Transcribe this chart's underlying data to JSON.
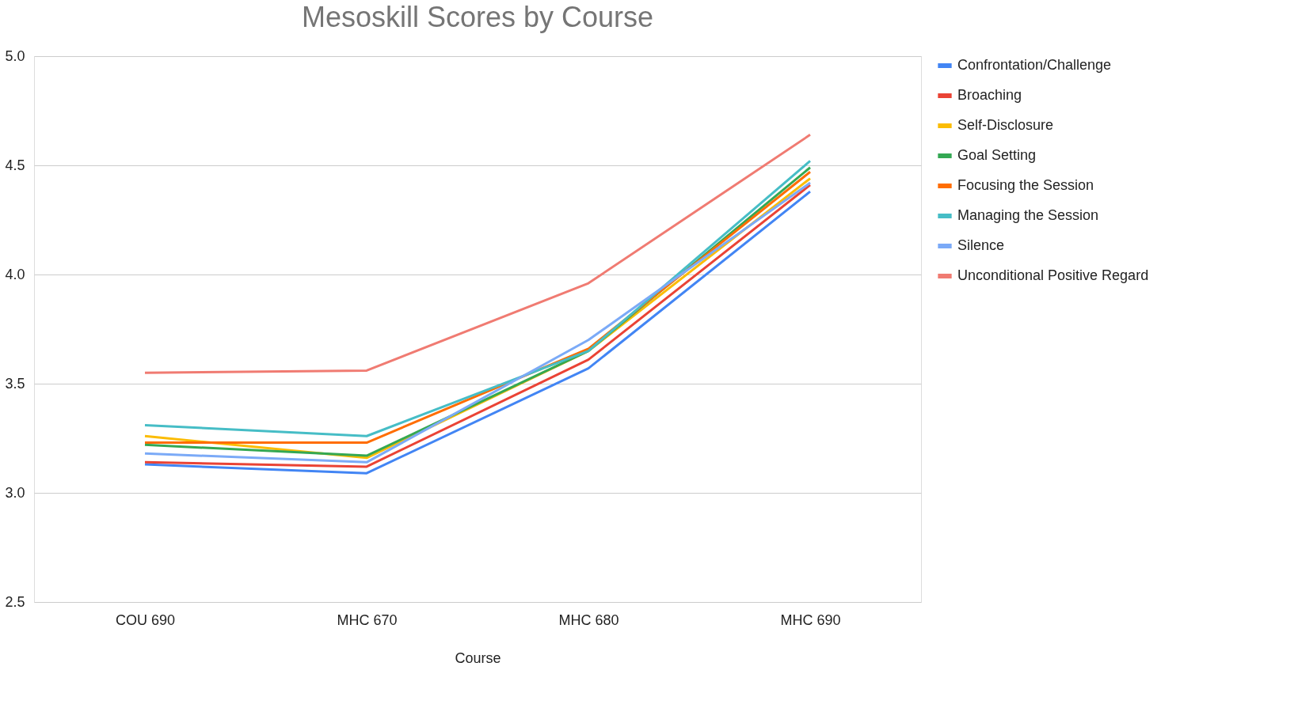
{
  "chart_data": {
    "type": "line",
    "title": "Mesoskill Scores by Course",
    "xlabel": "Course",
    "categories": [
      "COU 690",
      "MHC 670",
      "MHC 680",
      "MHC 690"
    ],
    "series": [
      {
        "name": "Confrontation/Challenge",
        "color": "#4285f4",
        "values": [
          3.13,
          3.09,
          3.57,
          4.38
        ]
      },
      {
        "name": "Broaching",
        "color": "#ea4335",
        "values": [
          3.14,
          3.12,
          3.61,
          4.41
        ]
      },
      {
        "name": "Self-Disclosure",
        "color": "#fbbc04",
        "values": [
          3.26,
          3.16,
          3.65,
          4.44
        ]
      },
      {
        "name": "Goal Setting",
        "color": "#34a853",
        "values": [
          3.22,
          3.17,
          3.65,
          4.49
        ]
      },
      {
        "name": "Focusing the Session",
        "color": "#ff6d01",
        "values": [
          3.23,
          3.23,
          3.66,
          4.47
        ]
      },
      {
        "name": "Managing the Session",
        "color": "#46bdc6",
        "values": [
          3.31,
          3.26,
          3.65,
          4.52
        ]
      },
      {
        "name": "Silence",
        "color": "#7baaf7",
        "values": [
          3.18,
          3.14,
          3.7,
          4.42
        ]
      },
      {
        "name": "Unconditional Positive Regard",
        "color": "#f07b72",
        "values": [
          3.55,
          3.56,
          3.96,
          4.64
        ]
      }
    ],
    "ylim": [
      2.5,
      5.0
    ],
    "yticks": [
      {
        "value": 2.5,
        "label": "2.5"
      },
      {
        "value": 3.0,
        "label": "3.0"
      },
      {
        "value": 3.5,
        "label": "3.5"
      },
      {
        "value": 4.0,
        "label": "4.0"
      },
      {
        "value": 4.5,
        "label": "4.5"
      },
      {
        "value": 5.0,
        "label": "5.0"
      }
    ],
    "grid": "y",
    "legend": "right",
    "marker": "none",
    "line_style": "solid"
  }
}
